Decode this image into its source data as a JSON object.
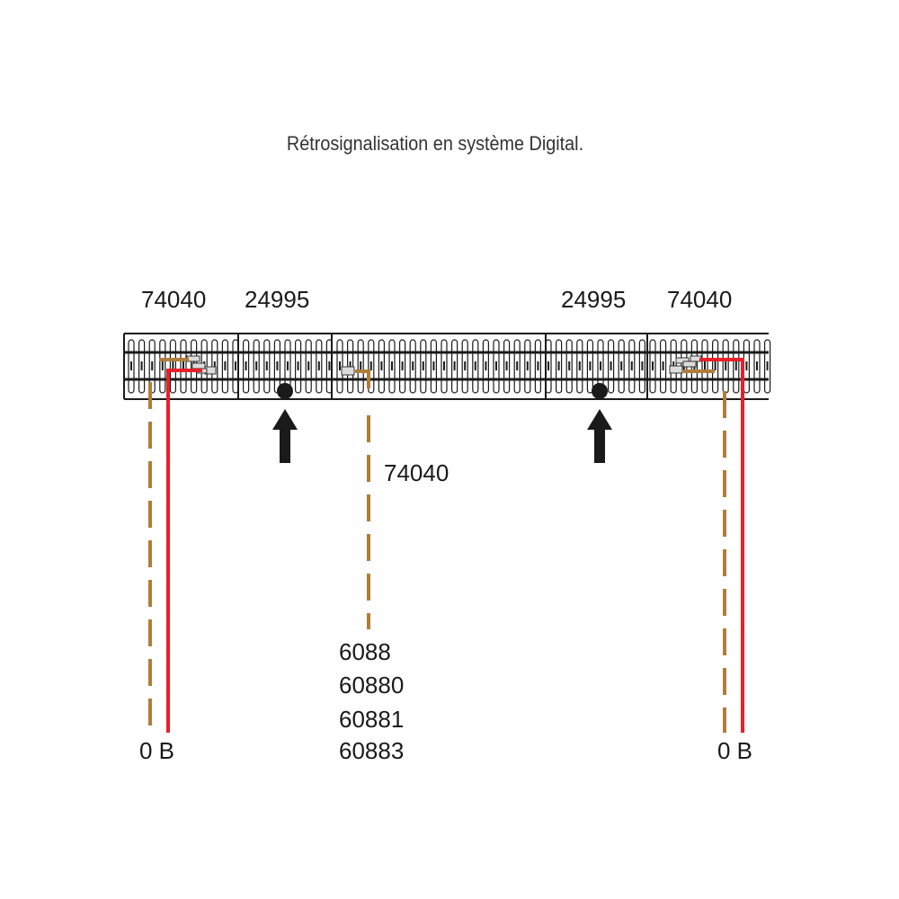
{
  "title": "Rétrosignalisation en système Digital.",
  "labels": {
    "left_outer": "74040",
    "left_inner": "24995",
    "right_inner": "24995",
    "right_outer": "74040",
    "middle": "74040",
    "decoders": [
      "6088",
      "60880",
      "60881",
      "60883"
    ],
    "left_terminals": "0 B",
    "right_terminals": "0 B"
  },
  "colors": {
    "track": "#1a1a1a",
    "brown_wire": "#b07d3a",
    "red_wire": "#e8202a",
    "arrow": "#1a1a1a"
  }
}
